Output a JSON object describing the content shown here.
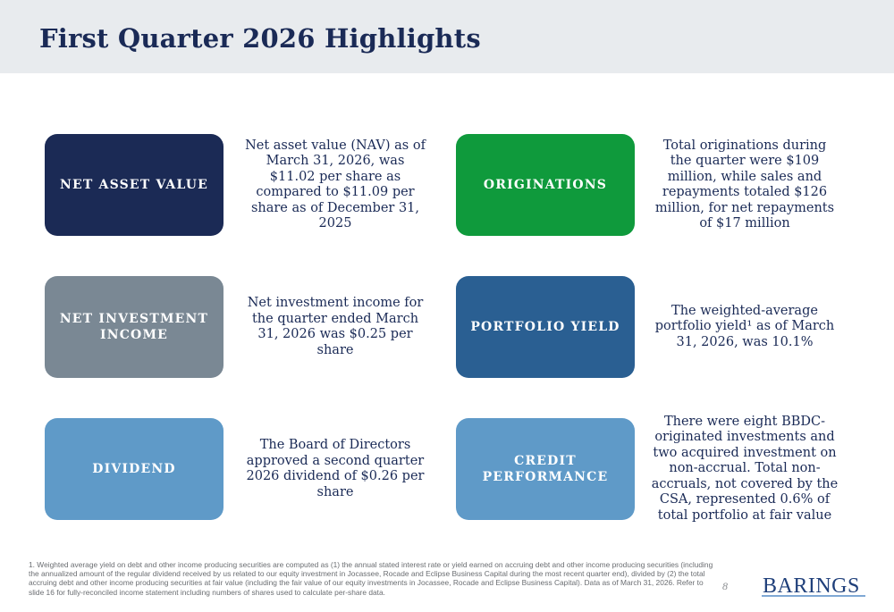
{
  "title": "First Quarter 2026 Highlights",
  "colors": {
    "navy": "#1b2a55",
    "green": "#0f9a3c",
    "slate": "#7a8894",
    "steel_blue": "#2a5f92",
    "light_blue": "#5f9ac8",
    "title_text": "#1a2a56",
    "header_band": "#e8ebee"
  },
  "highlights": [
    {
      "label": "NET ASSET VALUE",
      "color": "#1b2a55",
      "description": "Net asset value (NAV) as of March 31, 2026, was $11.02 per share as compared to $11.09 per share as of December 31, 2025"
    },
    {
      "label": "ORIGINATIONS",
      "color": "#0f9a3c",
      "description": "Total originations during the quarter were $109 million, while sales and repayments totaled $126 million, for net repayments of $17 million"
    },
    {
      "label": "NET INVESTMENT INCOME",
      "color": "#7a8894",
      "description": "Net investment income for the quarter ended March 31, 2026 was $0.25 per share"
    },
    {
      "label": "PORTFOLIO YIELD",
      "color": "#2a5f92",
      "description": "The weighted-average portfolio yield¹ as of March 31, 2026, was 10.1%"
    },
    {
      "label": "DIVIDEND",
      "color": "#5f9ac8",
      "description": "The Board of Directors approved a second quarter 2026 dividend of $0.26 per share"
    },
    {
      "label": "CREDIT PERFORMANCE",
      "color": "#5f9ac8",
      "description": "There were eight BBDC-originated investments and two acquired investment on non-accrual. Total non-accruals, not covered by the CSA, represented 0.6% of total portfolio at fair value"
    }
  ],
  "footnote": "1.  Weighted average yield on debt and other income producing securities are computed as (1) the annual stated interest rate or yield earned on accruing debt and other income producing securities (including the annualized amount of the regular dividend received by us related to our equity investment in Jocassee, Rocade and Eclipse Business Capital during the most recent quarter end), divided by (2) the total accruing debt and other income producing securities at fair value (including the fair value of our equity investments in Jocassee, Rocade and Eclipse Business Capital). Data as of March 31, 2026. Refer to slide 16 for fully-reconciled income statement including numbers of shares used to calculate per-share data.",
  "page_number": "8",
  "logo_text": "BARINGS"
}
